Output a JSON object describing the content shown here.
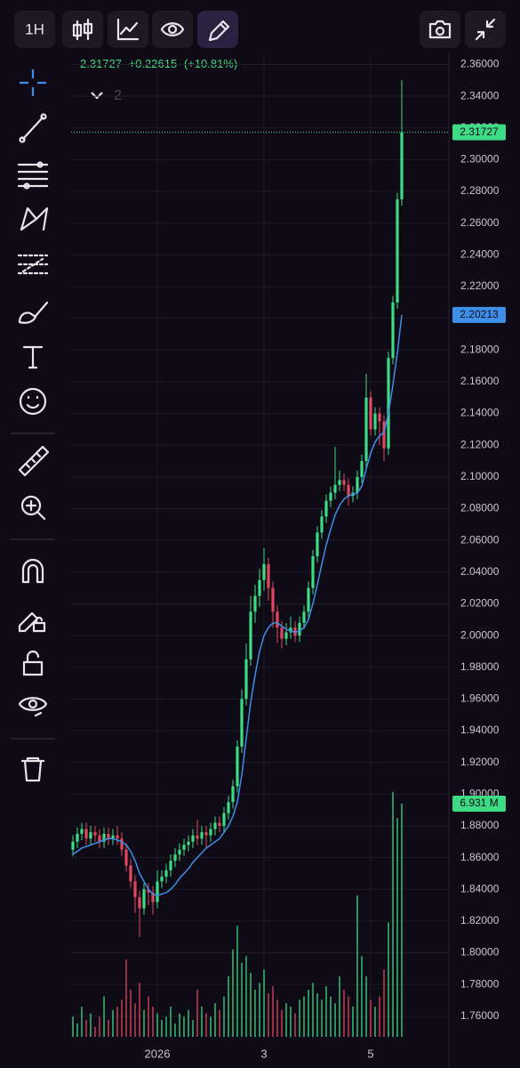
{
  "toolbar": {
    "interval": "1H"
  },
  "header": {
    "change": "+0.22615",
    "change_pct": "(+10.81%)",
    "indicator_count": "2"
  },
  "chart_data": {
    "type": "candlestick",
    "categories": [
      null,
      null,
      null,
      null,
      null,
      null,
      null,
      null,
      null,
      null,
      null,
      null,
      null,
      null,
      null,
      null,
      null,
      null,
      null,
      "2026",
      null,
      null,
      null,
      null,
      null,
      null,
      null,
      null,
      null,
      null,
      null,
      null,
      null,
      null,
      null,
      null,
      null,
      null,
      null,
      null,
      null,
      null,
      null,
      "3",
      null,
      null,
      null,
      null,
      null,
      null,
      null,
      null,
      null,
      null,
      null,
      null,
      null,
      null,
      null,
      null,
      null,
      null,
      null,
      null,
      null,
      null,
      null,
      "5",
      null,
      null,
      null,
      null,
      null,
      null,
      null
    ],
    "open": [
      1.865,
      1.87,
      1.875,
      1.878,
      1.872,
      1.876,
      1.874,
      1.87,
      1.875,
      1.872,
      1.874,
      1.872,
      1.865,
      1.855,
      1.845,
      1.835,
      1.828,
      1.84,
      1.838,
      1.832,
      1.845,
      1.848,
      1.852,
      1.858,
      1.862,
      1.865,
      1.868,
      1.87,
      1.874,
      1.872,
      1.876,
      1.874,
      1.878,
      1.882,
      1.88,
      1.888,
      1.895,
      1.905,
      1.93,
      1.96,
      1.985,
      2.015,
      2.025,
      2.035,
      2.045,
      2.03,
      2.015,
      2.005,
      1.998,
      2.002,
      2.005,
      2.0,
      2.008,
      2.015,
      2.03,
      2.05,
      2.065,
      2.075,
      2.085,
      2.09,
      2.095,
      2.098,
      2.095,
      2.088,
      2.09,
      2.1,
      2.11,
      2.15,
      2.13,
      2.14,
      2.135,
      2.118,
      2.175,
      2.21,
      2.275
    ],
    "high": [
      1.874,
      1.879,
      1.882,
      1.882,
      1.88,
      1.88,
      1.878,
      1.879,
      1.879,
      1.878,
      1.88,
      1.876,
      1.869,
      1.859,
      1.849,
      1.839,
      1.844,
      1.844,
      1.842,
      1.852,
      1.852,
      1.856,
      1.862,
      1.866,
      1.869,
      1.872,
      1.874,
      1.878,
      1.884,
      1.88,
      1.88,
      1.882,
      1.886,
      1.886,
      1.892,
      1.899,
      1.909,
      1.934,
      1.966,
      1.995,
      2.025,
      2.032,
      2.042,
      2.055,
      2.049,
      2.034,
      2.019,
      2.009,
      2.008,
      2.012,
      2.009,
      2.012,
      2.019,
      2.034,
      2.054,
      2.069,
      2.079,
      2.089,
      2.094,
      2.119,
      2.104,
      2.102,
      2.099,
      2.094,
      2.104,
      2.114,
      2.165,
      2.154,
      2.144,
      2.144,
      2.139,
      2.179,
      2.214,
      2.279,
      2.35
    ],
    "low": [
      1.861,
      1.866,
      1.871,
      1.868,
      1.868,
      1.87,
      1.866,
      1.866,
      1.868,
      1.868,
      1.868,
      1.861,
      1.851,
      1.841,
      1.825,
      1.81,
      1.824,
      1.83,
      1.824,
      1.828,
      1.841,
      1.844,
      1.848,
      1.854,
      1.858,
      1.861,
      1.864,
      1.866,
      1.868,
      1.868,
      1.866,
      1.87,
      1.874,
      1.876,
      1.876,
      1.884,
      1.891,
      1.901,
      1.926,
      1.956,
      1.981,
      2.008,
      2.018,
      2.028,
      2.022,
      2.005,
      1.995,
      1.992,
      1.994,
      1.998,
      1.996,
      1.996,
      2.004,
      2.011,
      2.026,
      2.046,
      2.061,
      2.071,
      2.081,
      2.086,
      2.091,
      2.091,
      2.082,
      2.084,
      2.086,
      2.096,
      2.106,
      2.126,
      2.126,
      2.12,
      2.11,
      2.114,
      2.171,
      2.206,
      2.271
    ],
    "close": [
      1.87,
      1.875,
      1.878,
      1.872,
      1.876,
      1.874,
      1.87,
      1.875,
      1.872,
      1.874,
      1.872,
      1.865,
      1.855,
      1.845,
      1.835,
      1.828,
      1.84,
      1.838,
      1.832,
      1.845,
      1.848,
      1.852,
      1.858,
      1.862,
      1.865,
      1.868,
      1.87,
      1.874,
      1.872,
      1.876,
      1.874,
      1.878,
      1.882,
      1.88,
      1.888,
      1.895,
      1.905,
      1.93,
      1.96,
      1.985,
      2.015,
      2.025,
      2.035,
      2.045,
      2.03,
      2.015,
      2.005,
      1.998,
      2.002,
      2.005,
      2.0,
      2.008,
      2.015,
      2.03,
      2.05,
      2.065,
      2.075,
      2.085,
      2.09,
      2.095,
      2.098,
      2.095,
      2.088,
      2.09,
      2.1,
      2.11,
      2.15,
      2.13,
      2.14,
      2.135,
      2.118,
      2.175,
      2.21,
      2.275,
      2.31727
    ],
    "up_color": "#3ddc84",
    "down_color": "#e0485f",
    "ma": {
      "color": "#3d8fe8",
      "values": [
        1.862,
        1.864,
        1.866,
        1.867,
        1.868,
        1.869,
        1.87,
        1.871,
        1.872,
        1.872,
        1.871,
        1.87,
        1.868,
        1.864,
        1.858,
        1.85,
        1.845,
        1.84,
        1.837,
        1.836,
        1.837,
        1.838,
        1.84,
        1.843,
        1.847,
        1.85,
        1.853,
        1.857,
        1.86,
        1.863,
        1.866,
        1.868,
        1.87,
        1.872,
        1.876,
        1.88,
        1.886,
        1.895,
        1.912,
        1.935,
        1.958,
        1.975,
        1.99,
        2.0,
        2.005,
        2.008,
        2.008,
        2.006,
        2.004,
        2.003,
        2.002,
        2.003,
        2.005,
        2.01,
        2.02,
        2.032,
        2.045,
        2.057,
        2.067,
        2.076,
        2.082,
        2.086,
        2.088,
        2.089,
        2.09,
        2.094,
        2.105,
        2.115,
        2.122,
        2.126,
        2.128,
        2.14,
        2.158,
        2.178,
        2.20213
      ]
    },
    "volume": {
      "values": [
        0.6,
        0.4,
        0.9,
        0.5,
        0.7,
        0.3,
        0.6,
        1.2,
        0.5,
        0.8,
        0.9,
        1.1,
        2.3,
        1.4,
        1.0,
        1.6,
        0.8,
        1.2,
        0.9,
        0.7,
        0.5,
        0.6,
        0.9,
        0.4,
        0.7,
        0.6,
        0.8,
        0.5,
        1.4,
        0.9,
        0.7,
        0.6,
        1.0,
        0.8,
        1.2,
        1.8,
        2.6,
        3.3,
        2.2,
        2.4,
        1.9,
        1.4,
        1.6,
        2.0,
        1.3,
        1.5,
        1.1,
        0.8,
        1.0,
        0.9,
        0.7,
        1.1,
        1.2,
        1.4,
        1.6,
        1.3,
        1.1,
        1.5,
        1.2,
        1.0,
        1.8,
        1.4,
        1.2,
        0.9,
        4.2,
        2.4,
        1.8,
        1.1,
        0.9,
        1.2,
        2.0,
        3.4,
        7.28,
        6.5,
        6.931
      ],
      "value_labels": [
        null,
        null,
        null,
        null,
        null,
        null,
        null,
        null,
        null,
        null,
        null,
        null,
        null,
        null,
        null,
        null,
        null,
        null,
        null,
        null,
        null,
        null,
        null,
        null,
        null,
        null,
        null,
        null,
        null,
        null,
        null,
        null,
        null,
        null,
        null,
        null,
        null,
        null,
        null,
        null,
        null,
        null,
        null,
        null,
        null,
        null,
        null,
        null,
        null,
        null,
        null,
        null,
        null,
        null,
        null,
        null,
        null,
        null,
        null,
        null,
        null,
        null,
        null,
        null,
        null,
        null,
        null,
        null,
        null,
        null,
        null,
        null,
        null,
        null,
        "6.931 M"
      ],
      "lim": [
        0,
        7.3
      ]
    },
    "ylim": [
      1.747,
      2.367
    ],
    "yticks": [
      {
        "value": 2.36,
        "label": "2.36000"
      },
      {
        "value": 2.34,
        "label": "2.34000"
      },
      {
        "value": 2.32,
        "label": "2.32000"
      },
      {
        "value": 2.3,
        "label": "2.30000"
      },
      {
        "value": 2.28,
        "label": "2.28000"
      },
      {
        "value": 2.26,
        "label": "2.26000"
      },
      {
        "value": 2.24,
        "label": "2.24000"
      },
      {
        "value": 2.22,
        "label": "2.22000"
      },
      {
        "value": 2.2,
        "label": "2.20000"
      },
      {
        "value": 2.18,
        "label": "2.18000"
      },
      {
        "value": 2.16,
        "label": "2.16000"
      },
      {
        "value": 2.14,
        "label": "2.14000"
      },
      {
        "value": 2.12,
        "label": "2.12000"
      },
      {
        "value": 2.1,
        "label": "2.10000"
      },
      {
        "value": 2.08,
        "label": "2.08000"
      },
      {
        "value": 2.06,
        "label": "2.06000"
      },
      {
        "value": 2.04,
        "label": "2.04000"
      },
      {
        "value": 2.02,
        "label": "2.02000"
      },
      {
        "value": 2.0,
        "label": "2.00000"
      },
      {
        "value": 1.98,
        "label": "1.98000"
      },
      {
        "value": 1.96,
        "label": "1.96000"
      },
      {
        "value": 1.94,
        "label": "1.94000"
      },
      {
        "value": 1.92,
        "label": "1.92000"
      },
      {
        "value": 1.9,
        "label": "1.90000"
      },
      {
        "value": 1.88,
        "label": "1.88000"
      },
      {
        "value": 1.86,
        "label": "1.86000"
      },
      {
        "value": 1.84,
        "label": "1.84000"
      },
      {
        "value": 1.82,
        "label": "1.82000"
      },
      {
        "value": 1.8,
        "label": "1.80000"
      },
      {
        "value": 1.78,
        "label": "1.78000"
      },
      {
        "value": 1.76,
        "label": "1.76000"
      }
    ],
    "grid": true
  }
}
